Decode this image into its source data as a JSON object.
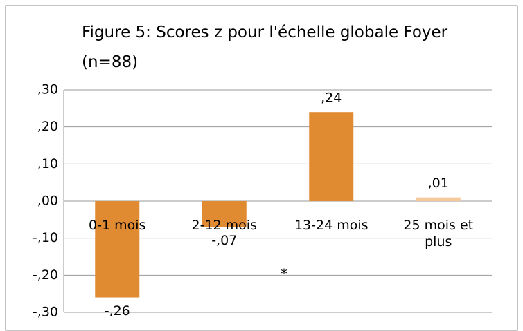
{
  "chart_data": {
    "type": "bar",
    "title": "Figure 5: Scores z pour l'échelle globale Foyer (n=88)",
    "categories": [
      "0-1 mois",
      "2-12 mois",
      "13-24 mois",
      "25 mois et plus"
    ],
    "values": [
      -0.26,
      -0.07,
      0.24,
      0.01
    ],
    "value_labels": [
      "-,26",
      "-,07",
      ",24",
      ",01"
    ],
    "colors": [
      "#e08a32",
      "#e08a32",
      "#e08a32",
      "#f6c99a"
    ],
    "ylim": [
      -0.3,
      0.3
    ],
    "yticks": [
      {
        "value": 0.3,
        "label": ",30"
      },
      {
        "value": 0.2,
        "label": ",20"
      },
      {
        "value": 0.1,
        "label": ",10"
      },
      {
        "value": 0,
        "label": ",00"
      },
      {
        "value": -0.1,
        "label": "-,10"
      },
      {
        "value": -0.2,
        "label": "-,20"
      },
      {
        "value": -0.3,
        "label": "-,30"
      }
    ],
    "grid": true,
    "annotations": [
      "*"
    ]
  }
}
